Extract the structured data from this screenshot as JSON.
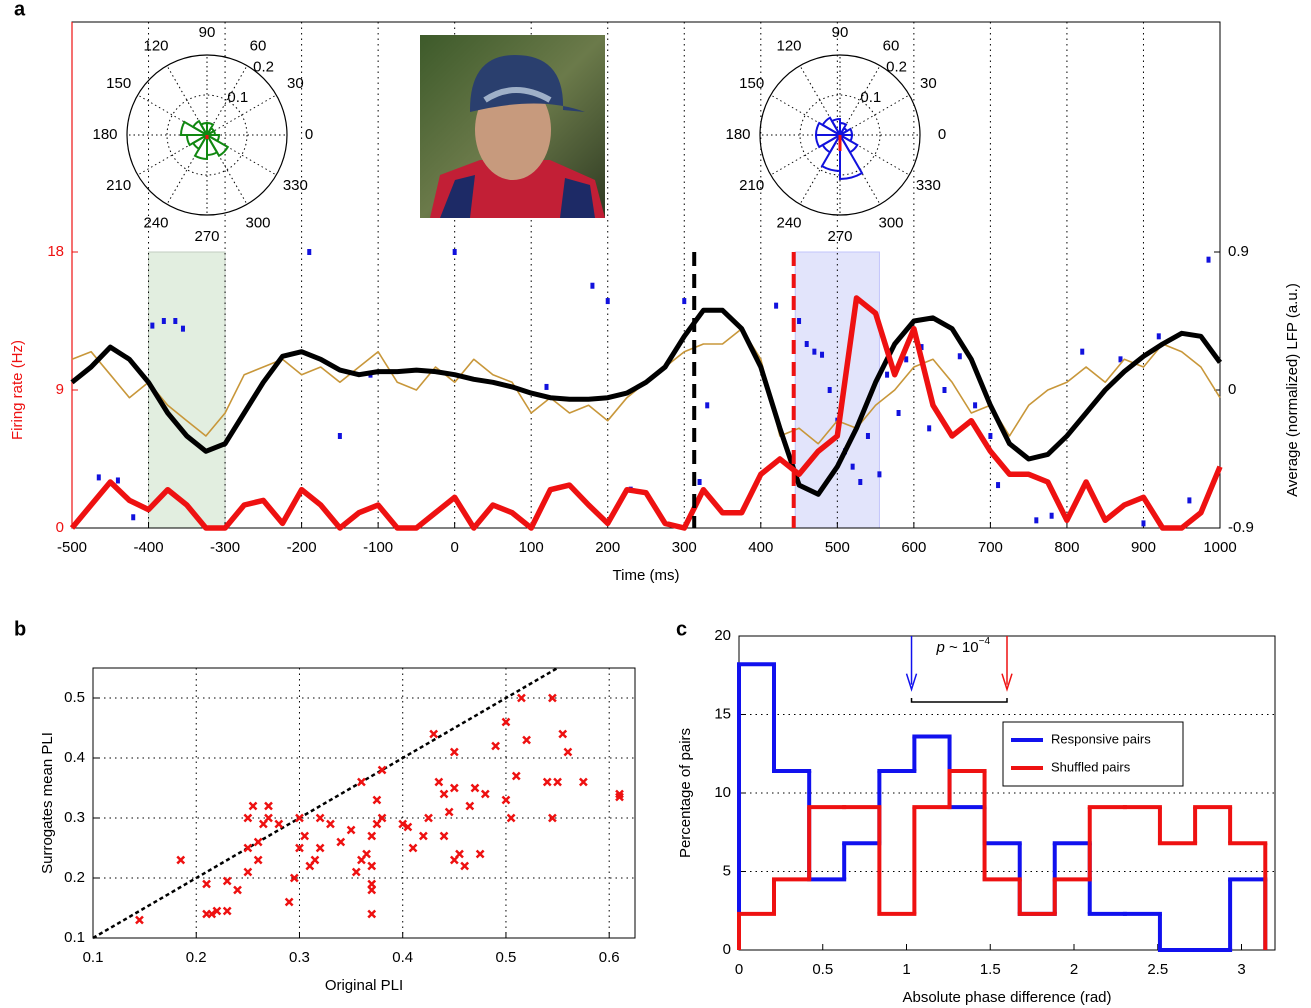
{
  "chart_data": [
    {
      "type": "line",
      "panel": "a",
      "xlabel": "Time (ms)",
      "ylabel": "Firing rate (Hz)",
      "y2label": "Average (normalized) LFP (a.u.)",
      "xlim": [
        -500,
        1000
      ],
      "xticks": [
        -500,
        -400,
        -300,
        -200,
        -100,
        0,
        100,
        200,
        300,
        400,
        500,
        600,
        700,
        800,
        900,
        1000
      ],
      "ylim": [
        0,
        18
      ],
      "yticks": [
        0,
        9,
        18
      ],
      "y2lim": [
        -0.9,
        0.9
      ],
      "y2ticks": [
        -0.9,
        0,
        0.9
      ],
      "grid": "x",
      "x": [
        -500,
        -475,
        -450,
        -425,
        -400,
        -375,
        -350,
        -325,
        -300,
        -275,
        -250,
        -225,
        -200,
        -175,
        -150,
        -125,
        -100,
        -75,
        -50,
        -25,
        0,
        25,
        50,
        75,
        100,
        125,
        150,
        175,
        200,
        225,
        250,
        275,
        300,
        325,
        350,
        375,
        400,
        425,
        450,
        475,
        500,
        525,
        550,
        575,
        600,
        625,
        650,
        675,
        700,
        725,
        750,
        775,
        800,
        825,
        850,
        875,
        900,
        925,
        950,
        975,
        1000
      ],
      "series": [
        {
          "color": "#c8973a",
          "axis": "y2",
          "values": [
            0.2,
            0.25,
            0.1,
            -0.05,
            0.05,
            -0.1,
            -0.2,
            -0.3,
            -0.15,
            0.1,
            0.15,
            0.2,
            0.1,
            0.15,
            0.05,
            0.15,
            0.25,
            0.05,
            0,
            0.15,
            0.05,
            0.2,
            0.1,
            0.05,
            -0.15,
            -0.05,
            -0.15,
            -0.1,
            -0.2,
            -0.05,
            0.05,
            0.15,
            0.25,
            0.3,
            0.3,
            0.4,
            0.2,
            -0.3,
            -0.25,
            -0.35,
            -0.2,
            -0.25,
            -0.1,
            0,
            0.15,
            0.2,
            0.05,
            -0.15,
            -0.1,
            -0.3,
            -0.1,
            0,
            0.05,
            0.15,
            0.05,
            0.2,
            0.15,
            0.3,
            0.25,
            0.15,
            -0.05
          ]
        },
        {
          "color": "#000000",
          "axis": "y2",
          "values": [
            0.05,
            0.15,
            0.28,
            0.2,
            0.05,
            -0.15,
            -0.3,
            -0.4,
            -0.35,
            -0.15,
            0.05,
            0.22,
            0.25,
            0.2,
            0.13,
            0.1,
            0.12,
            0.12,
            0.13,
            0.12,
            0.1,
            0.07,
            0.05,
            0.02,
            -0.02,
            -0.05,
            -0.06,
            -0.06,
            -0.05,
            -0.02,
            0.05,
            0.15,
            0.35,
            0.52,
            0.52,
            0.4,
            0.15,
            -0.25,
            -0.62,
            -0.68,
            -0.5,
            -0.25,
            0.05,
            0.3,
            0.45,
            0.47,
            0.4,
            0.2,
            -0.1,
            -0.35,
            -0.45,
            -0.42,
            -0.3,
            -0.15,
            0,
            0.12,
            0.22,
            0.3,
            0.37,
            0.35,
            0.18
          ]
        },
        {
          "color": "#ee1111",
          "axis": "y",
          "values": [
            0,
            1.5,
            3,
            1.8,
            1.2,
            2.5,
            1.5,
            0,
            0,
            1.5,
            1.8,
            0.3,
            2.5,
            1.5,
            0,
            1,
            1.5,
            0,
            0,
            1,
            2,
            0,
            1.5,
            1,
            0,
            2.5,
            2.8,
            1.5,
            0.3,
            2.5,
            2.3,
            0.3,
            0,
            2.5,
            1,
            1,
            3.5,
            4.5,
            3.5,
            5,
            6,
            15,
            14,
            10,
            13,
            8,
            6,
            7,
            5,
            3.5,
            3.5,
            3,
            0.5,
            3,
            0.5,
            1.5,
            2,
            0,
            0,
            1,
            4
          ]
        }
      ],
      "raster": {
        "color": "#1111dd",
        "x": [
          -465,
          -440,
          -420,
          -395,
          -380,
          -365,
          -355,
          -190,
          -110,
          -150,
          0,
          120,
          180,
          200,
          230,
          300,
          320,
          330,
          420,
          450,
          460,
          470,
          480,
          490,
          500,
          510,
          520,
          530,
          540,
          555,
          565,
          580,
          590,
          610,
          620,
          640,
          660,
          680,
          700,
          710,
          760,
          780,
          820,
          870,
          900,
          920,
          960,
          985
        ],
        "values": [
          3.3,
          3.1,
          0.7,
          13.2,
          13.5,
          13.5,
          13,
          18,
          10,
          6,
          18,
          9.2,
          15.8,
          14.8,
          2.5,
          14.8,
          3,
          8,
          14.5,
          13.5,
          12,
          11.5,
          11.3,
          9,
          7,
          5,
          4,
          3,
          6,
          3.5,
          10,
          7.5,
          11,
          11.8,
          6.5,
          9,
          11.2,
          8,
          6,
          2.8,
          0.5,
          0.8,
          11.5,
          11,
          0.3,
          12.5,
          1.8,
          17.5
        ]
      },
      "spans": [
        {
          "x": [
            -400,
            -300
          ],
          "color": "#e2eee0"
        },
        {
          "x": [
            445,
            555
          ],
          "color": "#e2e4fb"
        }
      ],
      "markers": [
        {
          "x": 313,
          "color": "#000000"
        },
        {
          "x": 443,
          "color": "#ee1111"
        }
      ]
    },
    {
      "type": "polar",
      "color": "#118811",
      "thetaticks": [
        0,
        30,
        60,
        90,
        120,
        150,
        180,
        210,
        240,
        270,
        300,
        330
      ],
      "rlim": [
        0,
        0.2
      ],
      "rticks": [
        0.1,
        0.2
      ],
      "theta": [
        15,
        45,
        75,
        105,
        135,
        165,
        195,
        225,
        255,
        285,
        315,
        345
      ],
      "values": [
        0.02,
        0.02,
        0.03,
        0.03,
        0.04,
        0.065,
        0.05,
        0.04,
        0.06,
        0.05,
        0.06,
        0.03
      ],
      "vector": {
        "angle": 270,
        "length": 0.01,
        "color": "#ee1111"
      }
    },
    {
      "type": "polar",
      "color": "#1111dd",
      "thetaticks": [
        0,
        30,
        60,
        90,
        120,
        150,
        180,
        210,
        240,
        270,
        300,
        330
      ],
      "rlim": [
        0,
        0.2
      ],
      "rticks": [
        0.1,
        0.2
      ],
      "theta": [
        15,
        45,
        75,
        105,
        135,
        165,
        195,
        225,
        255,
        285,
        315,
        345
      ],
      "values": [
        0.03,
        0.02,
        0.03,
        0.04,
        0.05,
        0.06,
        0.06,
        0.05,
        0.09,
        0.11,
        0.05,
        0.03
      ],
      "vector": {
        "angle": 270,
        "length": 0.04,
        "color": "#ee1111"
      }
    },
    {
      "type": "scatter",
      "panel": "b",
      "xlabel": "Original PLI",
      "ylabel": "Surrogates mean PLI",
      "color": "#ee1111",
      "grid": true,
      "diagonal": true,
      "xlim": [
        0.1,
        0.625
      ],
      "xticks": [
        0.1,
        0.2,
        0.3,
        0.4,
        0.5,
        0.6
      ],
      "ylim": [
        0.1,
        0.55
      ],
      "yticks": [
        0.1,
        0.2,
        0.3,
        0.4,
        0.5
      ],
      "x": [
        0.145,
        0.185,
        0.21,
        0.21,
        0.215,
        0.22,
        0.23,
        0.23,
        0.24,
        0.25,
        0.25,
        0.25,
        0.255,
        0.26,
        0.26,
        0.265,
        0.27,
        0.27,
        0.28,
        0.29,
        0.295,
        0.3,
        0.3,
        0.305,
        0.31,
        0.315,
        0.32,
        0.32,
        0.33,
        0.34,
        0.35,
        0.355,
        0.36,
        0.36,
        0.365,
        0.37,
        0.37,
        0.37,
        0.37,
        0.37,
        0.375,
        0.375,
        0.38,
        0.38,
        0.4,
        0.405,
        0.41,
        0.42,
        0.425,
        0.43,
        0.435,
        0.44,
        0.44,
        0.445,
        0.45,
        0.45,
        0.45,
        0.455,
        0.46,
        0.465,
        0.47,
        0.475,
        0.48,
        0.49,
        0.5,
        0.5,
        0.505,
        0.51,
        0.515,
        0.52,
        0.54,
        0.545,
        0.545,
        0.55,
        0.555,
        0.56,
        0.575,
        0.61,
        0.61
      ],
      "values": [
        0.13,
        0.23,
        0.19,
        0.14,
        0.14,
        0.145,
        0.195,
        0.145,
        0.18,
        0.21,
        0.25,
        0.3,
        0.32,
        0.23,
        0.26,
        0.29,
        0.32,
        0.3,
        0.29,
        0.16,
        0.2,
        0.25,
        0.3,
        0.27,
        0.22,
        0.23,
        0.25,
        0.3,
        0.29,
        0.26,
        0.28,
        0.21,
        0.36,
        0.23,
        0.24,
        0.22,
        0.19,
        0.18,
        0.14,
        0.27,
        0.33,
        0.29,
        0.3,
        0.38,
        0.29,
        0.285,
        0.25,
        0.27,
        0.3,
        0.44,
        0.36,
        0.27,
        0.34,
        0.31,
        0.23,
        0.35,
        0.41,
        0.24,
        0.22,
        0.32,
        0.35,
        0.24,
        0.34,
        0.42,
        0.46,
        0.33,
        0.3,
        0.37,
        0.5,
        0.43,
        0.36,
        0.3,
        0.5,
        0.36,
        0.44,
        0.41,
        0.36,
        0.34,
        0.335
      ]
    },
    {
      "type": "step-histogram",
      "panel": "c",
      "xlabel": "Absolute phase difference (rad)",
      "ylabel": "Percentage of pairs",
      "grid": "y",
      "legend": "upper right",
      "xlim": [
        0,
        3.2
      ],
      "xticks": [
        0,
        0.5,
        1,
        1.5,
        2,
        2.5,
        3
      ],
      "ylim": [
        0,
        20
      ],
      "yticks": [
        0,
        5,
        10,
        15,
        20
      ],
      "bins": [
        0,
        0.209,
        0.419,
        0.628,
        0.838,
        1.047,
        1.257,
        1.466,
        1.676,
        1.885,
        2.094,
        2.304,
        2.513,
        2.723,
        2.932,
        3.142
      ],
      "series": [
        {
          "name": "Responsive pairs",
          "color": "#1111ee",
          "values": [
            18.2,
            11.4,
            4.5,
            6.8,
            11.4,
            13.6,
            9.1,
            6.8,
            2.3,
            6.8,
            2.3,
            2.3,
            0,
            0,
            4.5
          ]
        },
        {
          "name": "Shuffled pairs",
          "color": "#ee1111",
          "values": [
            2.3,
            4.5,
            9.1,
            9.1,
            2.3,
            9.1,
            11.4,
            4.5,
            2.3,
            4.5,
            9.1,
            9.1,
            6.8,
            9.1,
            6.8
          ]
        }
      ],
      "annotation": {
        "symbol": "p",
        "text": "~ 10",
        "exponent": "−4",
        "arrows": [
          1.03,
          1.6
        ]
      }
    }
  ]
}
